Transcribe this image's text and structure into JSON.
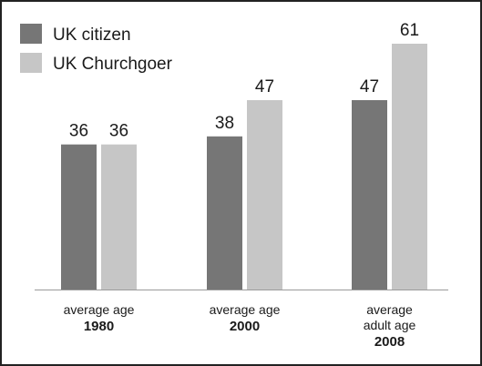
{
  "chart_data": {
    "type": "bar",
    "categories": [
      {
        "lines": [
          "average age"
        ],
        "year": "1980"
      },
      {
        "lines": [
          "average age"
        ],
        "year": "2000"
      },
      {
        "lines": [
          "average",
          "adult age"
        ],
        "year": "2008"
      }
    ],
    "series": [
      {
        "name": "UK citizen",
        "color": "#767676",
        "values": [
          36,
          38,
          47
        ]
      },
      {
        "name": "UK Churchgoer",
        "color": "#c6c6c6",
        "values": [
          36,
          47,
          61
        ]
      }
    ],
    "ylim": [
      0,
      61
    ],
    "grid": false,
    "legend": "top-left",
    "data_labels": true
  }
}
